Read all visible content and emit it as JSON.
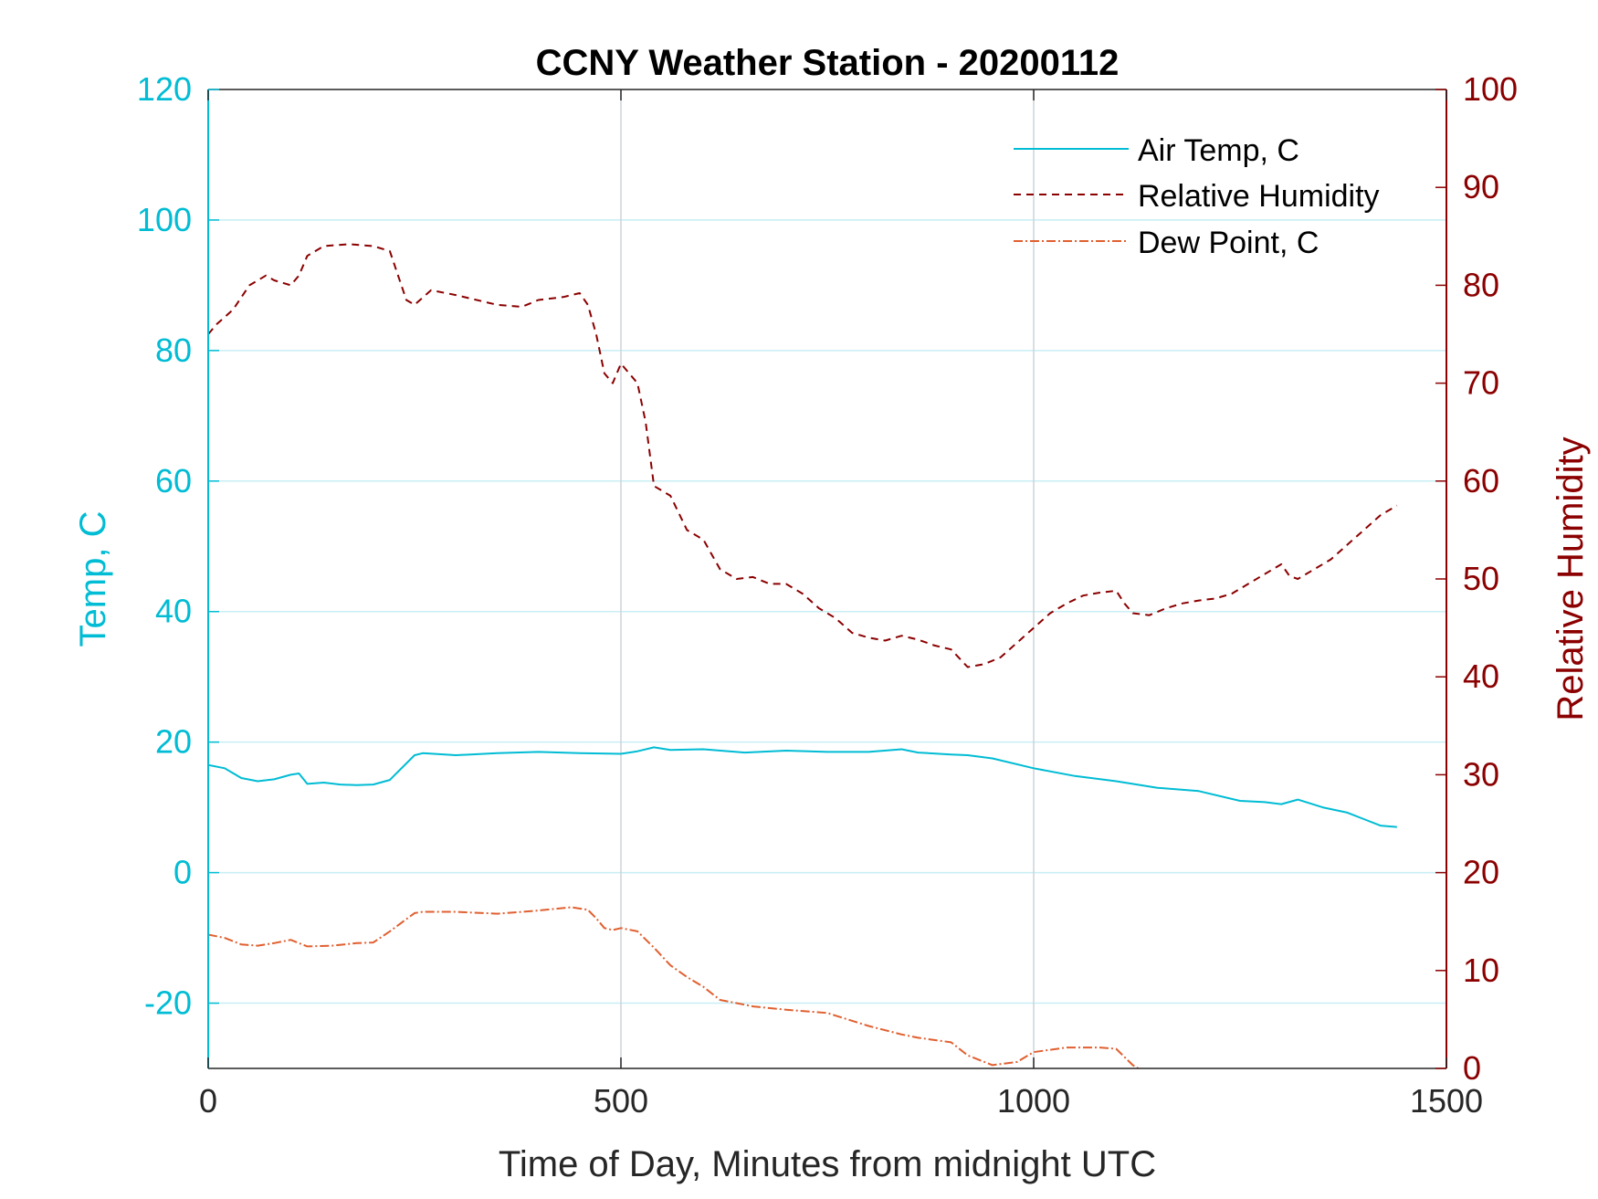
{
  "chart_data": {
    "type": "line",
    "title": "CCNY Weather Station - 20200112",
    "xlabel": "Time of Day, Minutes from midnight UTC",
    "ylabel_left": "Temp, C",
    "ylabel_right": "Relative Humidity",
    "xlim": [
      0,
      1500
    ],
    "ylim_left": [
      -30,
      120
    ],
    "ylim_right": [
      0,
      100
    ],
    "xticks": [
      0,
      500,
      1000,
      1500
    ],
    "yticks_left": [
      -20,
      0,
      20,
      40,
      60,
      80,
      100,
      120
    ],
    "yticks_right": [
      0,
      10,
      20,
      30,
      40,
      50,
      60,
      70,
      80,
      90,
      100
    ],
    "grid": "on",
    "legend_position": "top-right",
    "colors": {
      "air_temp": "#00bcd4",
      "humidity": "#8b0000",
      "dew_point": "#e06030",
      "grid_y": "#c8eef5",
      "grid_x": "#cdd3da"
    },
    "series": [
      {
        "name": "Air Temp, C",
        "axis": "left",
        "style": "solid",
        "x": [
          0,
          20,
          40,
          60,
          80,
          100,
          110,
          120,
          140,
          160,
          180,
          200,
          220,
          250,
          260,
          300,
          350,
          400,
          450,
          500,
          520,
          540,
          560,
          600,
          650,
          700,
          750,
          800,
          840,
          860,
          900,
          920,
          950,
          1000,
          1050,
          1100,
          1150,
          1200,
          1250,
          1280,
          1300,
          1320,
          1350,
          1380,
          1400,
          1420,
          1440
        ],
        "y": [
          16.5,
          16,
          14.5,
          14,
          14.3,
          15,
          15.2,
          13.6,
          13.8,
          13.5,
          13.4,
          13.5,
          14.2,
          18,
          18.3,
          18,
          18.3,
          18.5,
          18.3,
          18.2,
          18.6,
          19.2,
          18.8,
          18.9,
          18.4,
          18.7,
          18.5,
          18.5,
          18.9,
          18.4,
          18.1,
          18,
          17.5,
          16,
          14.8,
          14,
          13,
          12.5,
          11,
          10.8,
          10.5,
          11.2,
          10,
          9.2,
          8.2,
          7.2,
          7
        ]
      },
      {
        "name": "Relative Humidity",
        "axis": "right",
        "style": "dashed",
        "x": [
          0,
          10,
          30,
          50,
          70,
          80,
          100,
          110,
          120,
          140,
          170,
          200,
          220,
          240,
          250,
          270,
          300,
          350,
          380,
          400,
          430,
          450,
          460,
          470,
          480,
          490,
          500,
          520,
          530,
          540,
          560,
          580,
          600,
          620,
          640,
          660,
          680,
          700,
          720,
          740,
          760,
          780,
          800,
          820,
          840,
          860,
          880,
          900,
          920,
          940,
          960,
          980,
          1000,
          1020,
          1040,
          1060,
          1080,
          1100,
          1110,
          1120,
          1140,
          1160,
          1180,
          1200,
          1220,
          1240,
          1260,
          1280,
          1300,
          1310,
          1320,
          1340,
          1360,
          1380,
          1400,
          1420,
          1440
        ],
        "y": [
          75,
          76,
          77.5,
          80,
          81,
          80.5,
          80,
          81,
          83,
          84,
          84.2,
          84,
          83.5,
          78.5,
          78,
          79.5,
          79,
          78,
          77.8,
          78.5,
          78.8,
          79.2,
          78,
          75,
          71,
          70,
          72,
          70,
          66,
          59.5,
          58.5,
          55,
          54,
          51,
          50,
          50.2,
          49.5,
          49.5,
          48.5,
          47,
          46,
          44.5,
          44,
          43.7,
          44.2,
          43.8,
          43.2,
          42.8,
          41,
          41.3,
          42,
          43.5,
          45,
          46.5,
          47.5,
          48.3,
          48.6,
          48.8,
          47.5,
          46.5,
          46.3,
          47,
          47.5,
          47.8,
          48,
          48.5,
          49.5,
          50.5,
          51.5,
          50.3,
          50,
          51,
          52,
          53.5,
          55,
          56.5,
          57.5
        ]
      },
      {
        "name": "Dew Point, C",
        "axis": "left",
        "style": "dashdot",
        "x": [
          0,
          20,
          40,
          60,
          80,
          100,
          110,
          120,
          150,
          180,
          200,
          220,
          250,
          260,
          300,
          350,
          400,
          440,
          460,
          470,
          480,
          490,
          500,
          520,
          540,
          560,
          580,
          600,
          620,
          640,
          660,
          700,
          750,
          800,
          840,
          860,
          900,
          920,
          950,
          980,
          1000,
          1040,
          1080,
          1100,
          1120,
          1140,
          1160,
          1180
        ],
        "y": [
          -9.5,
          -10,
          -11,
          -11.2,
          -10.8,
          -10.3,
          -10.8,
          -11.3,
          -11.2,
          -10.8,
          -10.7,
          -9,
          -6.2,
          -6,
          -6,
          -6.3,
          -5.8,
          -5.3,
          -5.7,
          -7,
          -8.5,
          -8.8,
          -8.5,
          -9,
          -11.5,
          -14.2,
          -16,
          -17.5,
          -19.5,
          -20,
          -20.5,
          -21,
          -21.5,
          -23.5,
          -24.8,
          -25.3,
          -26,
          -28,
          -29.5,
          -29,
          -27.5,
          -26.8,
          -26.8,
          -27,
          -29.5,
          -31,
          -31.5,
          -31.5
        ]
      }
    ]
  }
}
